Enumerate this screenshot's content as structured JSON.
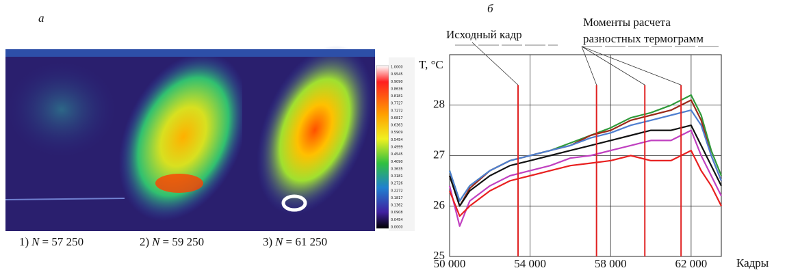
{
  "panel_a": {
    "label": "а",
    "colorbar_labels": [
      "1.0000",
      "0.9545",
      "0.9090",
      "0.8636",
      "0.8181",
      "0.7727",
      "0.7272",
      "0.6817",
      "0.6363",
      "0.5909",
      "0.5454",
      "0.4999",
      "0.4545",
      "0.4090",
      "0.3635",
      "0.3181",
      "0.2726",
      "0.2272",
      "0.1817",
      "0.1362",
      "0.0908",
      "0.0454",
      "0.0000"
    ],
    "captions": [
      {
        "index": "1)",
        "variable": "N",
        "value": "= 57 250"
      },
      {
        "index": "2)",
        "variable": "N",
        "value": "= 59 250"
      },
      {
        "index": "3)",
        "variable": "N",
        "value": "= 61 250"
      }
    ]
  },
  "chart_data": {
    "type": "line",
    "panel_label": "б",
    "y_label": "T, °C",
    "x_label": "Кадры",
    "annotations": [
      "Исходный кадр",
      "Моменты расчета",
      "разностных термограмм"
    ],
    "x": [
      50000,
      50500,
      51000,
      52000,
      53000,
      54000,
      55000,
      56000,
      57000,
      58000,
      59000,
      60000,
      61000,
      62000,
      62500,
      63000,
      63500
    ],
    "series": [
      {
        "color": "#2f9a3a",
        "values": [
          26.7,
          26.1,
          26.4,
          26.7,
          26.9,
          27.0,
          27.1,
          27.25,
          27.4,
          27.55,
          27.75,
          27.85,
          28.0,
          28.2,
          27.8,
          27.1,
          26.6
        ]
      },
      {
        "color": "#9a2a1a",
        "values": [
          26.6,
          26.0,
          26.35,
          26.7,
          26.9,
          27.0,
          27.1,
          27.2,
          27.4,
          27.5,
          27.7,
          27.8,
          27.9,
          28.1,
          27.7,
          27.0,
          26.5
        ]
      },
      {
        "color": "#4f7fd0",
        "values": [
          26.7,
          26.1,
          26.4,
          26.7,
          26.9,
          27.0,
          27.1,
          27.2,
          27.35,
          27.45,
          27.6,
          27.7,
          27.8,
          27.9,
          27.6,
          27.0,
          26.5
        ]
      },
      {
        "color": "#111111",
        "values": [
          26.6,
          26.0,
          26.3,
          26.6,
          26.8,
          26.9,
          27.0,
          27.1,
          27.2,
          27.3,
          27.4,
          27.5,
          27.5,
          27.6,
          27.2,
          26.8,
          26.4
        ]
      },
      {
        "color": "#c040c0",
        "values": [
          26.4,
          25.6,
          26.1,
          26.4,
          26.6,
          26.7,
          26.8,
          26.95,
          27.0,
          27.1,
          27.2,
          27.3,
          27.3,
          27.5,
          27.0,
          26.6,
          26.2
        ]
      },
      {
        "color": "#e82020",
        "values": [
          26.3,
          25.8,
          26.0,
          26.3,
          26.5,
          26.6,
          26.7,
          26.8,
          26.85,
          26.9,
          27.0,
          26.9,
          26.9,
          27.1,
          26.7,
          26.4,
          26.0
        ]
      }
    ],
    "markers": {
      "x": [
        53400,
        57300,
        59700,
        61500
      ],
      "top": 28.4,
      "color": "#e02020"
    },
    "xlim": [
      50000,
      63500
    ],
    "ylim": [
      25,
      29
    ],
    "xticks": [
      {
        "value": 50000,
        "label": "50 000"
      },
      {
        "value": 54000,
        "label": "54 000"
      },
      {
        "value": 58000,
        "label": "58 000"
      },
      {
        "value": 62000,
        "label": "62 000"
      }
    ],
    "yticks": [
      25,
      26,
      27,
      28
    ],
    "grid": true
  }
}
